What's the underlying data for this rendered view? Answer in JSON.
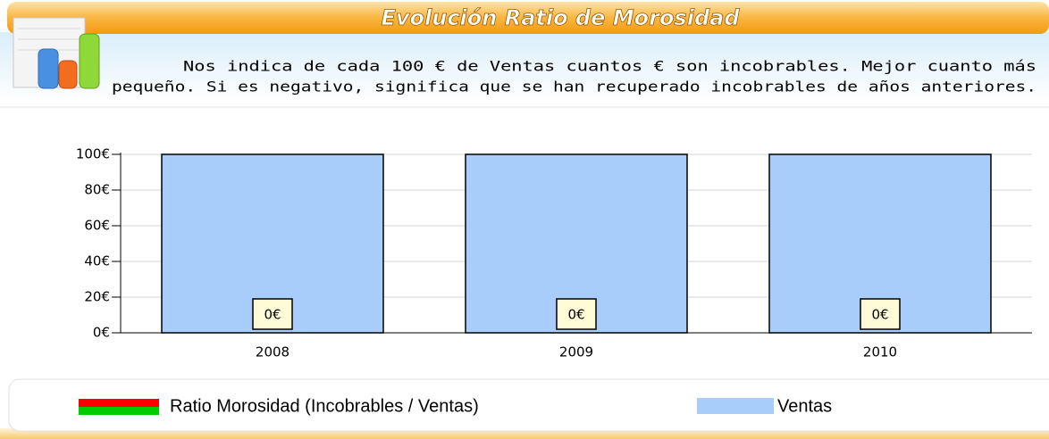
{
  "header": {
    "title": "Evolución Ratio de Morosidad",
    "description": [
      "Nos indica de cada 100 € de Ventas cuantos € son incobrables. Mejor cuanto más",
      "pequeño. Si es negativo, significa que se han recuperado incobrables de años anteriores."
    ]
  },
  "chart_data": {
    "type": "bar",
    "categories": [
      "2008",
      "2009",
      "2010"
    ],
    "series": [
      {
        "name": "Ratio Morosidad (Incobrables / Ventas)",
        "color": "#ff0000",
        "negative_color": "#00cc00",
        "values": [
          0,
          0,
          0
        ],
        "value_labels": [
          "0€",
          "0€",
          "0€"
        ]
      },
      {
        "name": "Ventas",
        "color": "#a9cdfb",
        "values": [
          100,
          100,
          100
        ]
      }
    ],
    "ylim": [
      0,
      100
    ],
    "yticks": [
      {
        "value": 0,
        "label": "0€"
      },
      {
        "value": 20,
        "label": "20€"
      },
      {
        "value": 40,
        "label": "40€"
      },
      {
        "value": 60,
        "label": "60€"
      },
      {
        "value": 80,
        "label": "80€"
      },
      {
        "value": 100,
        "label": "100€"
      }
    ],
    "grid": true
  }
}
